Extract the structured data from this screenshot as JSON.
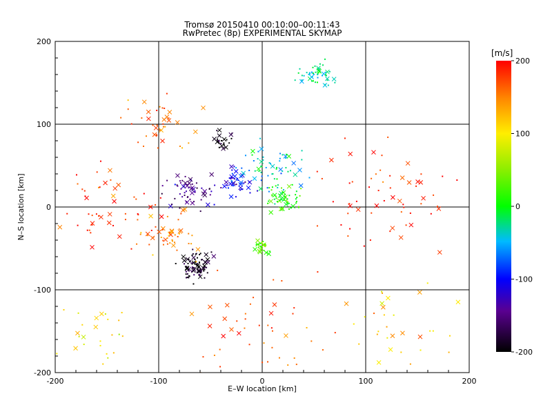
{
  "title_line1": "Tromsø 20150410 00:10:00–00:11:43",
  "title_line2": "RwPretec (8p) EXPERIMENTAL SKYMAP",
  "chart_data": {
    "type": "scatter",
    "xlabel": "E–W location [km]",
    "ylabel": "N–S location [km]",
    "xlim": [
      -200,
      200
    ],
    "ylim": [
      -200,
      200
    ],
    "xticks": [
      "-200",
      "-100",
      "0",
      "100",
      "200"
    ],
    "yticks": [
      "-200",
      "-100",
      "0",
      "100",
      "200"
    ],
    "grid": true,
    "colorbar": {
      "unit": "[m/s]",
      "range": [
        -200,
        200
      ],
      "ticks": [
        "200",
        "100",
        "0",
        "-100",
        "-200"
      ]
    },
    "clusters": [
      {
        "x": -65,
        "y": -70,
        "value": -190,
        "spread": 14,
        "n": 80
      },
      {
        "x": -70,
        "y": 20,
        "value": -150,
        "spread": 18,
        "n": 60
      },
      {
        "x": -25,
        "y": 30,
        "value": -110,
        "spread": 14,
        "n": 45
      },
      {
        "x": 20,
        "y": 10,
        "value": 10,
        "spread": 14,
        "n": 60
      },
      {
        "x": 50,
        "y": 160,
        "value": -30,
        "spread": 14,
        "n": 50
      },
      {
        "x": 0,
        "y": -50,
        "value": 40,
        "spread": 8,
        "n": 30
      },
      {
        "x": -40,
        "y": 80,
        "value": -200,
        "spread": 10,
        "n": 25
      },
      {
        "x": 10,
        "y": 50,
        "value": -40,
        "spread": 25,
        "n": 60
      },
      {
        "x": -90,
        "y": -30,
        "value": 150,
        "spread": 25,
        "n": 50
      },
      {
        "x": -100,
        "y": 100,
        "value": 160,
        "spread": 30,
        "n": 40
      },
      {
        "x": 120,
        "y": 20,
        "value": 190,
        "spread": 50,
        "n": 60
      },
      {
        "x": -150,
        "y": 0,
        "value": 180,
        "spread": 40,
        "n": 50
      },
      {
        "x": 0,
        "y": -150,
        "value": 170,
        "spread": 60,
        "n": 50
      },
      {
        "x": 140,
        "y": -140,
        "value": 120,
        "spread": 45,
        "n": 30
      },
      {
        "x": -160,
        "y": -150,
        "value": 100,
        "spread": 30,
        "n": 25
      }
    ]
  }
}
